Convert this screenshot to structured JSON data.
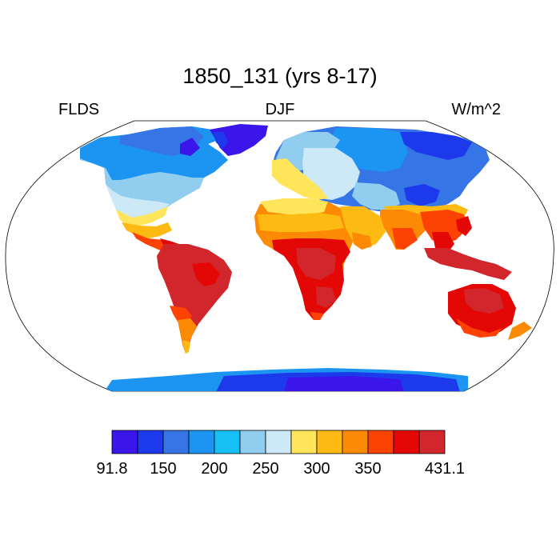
{
  "title": "1850_131 (yrs 8-17)",
  "variable": "FLDS",
  "season": "DJF",
  "units": "W/m^2",
  "projection": "Robinson",
  "colorbar": {
    "colors": [
      "#3a16ea",
      "#1c3aeb",
      "#3675e6",
      "#1b95f1",
      "#17c0f4",
      "#90cdee",
      "#cde8f6",
      "#ffe55a",
      "#fdba13",
      "#fd8a05",
      "#fc4303",
      "#e30806",
      "#d1262c"
    ],
    "tick_labels": [
      "91.8",
      "150",
      "200",
      "250",
      "300",
      "350",
      "431.1"
    ],
    "tick_positions": [
      0,
      2,
      4,
      6,
      8,
      10,
      13
    ]
  }
}
